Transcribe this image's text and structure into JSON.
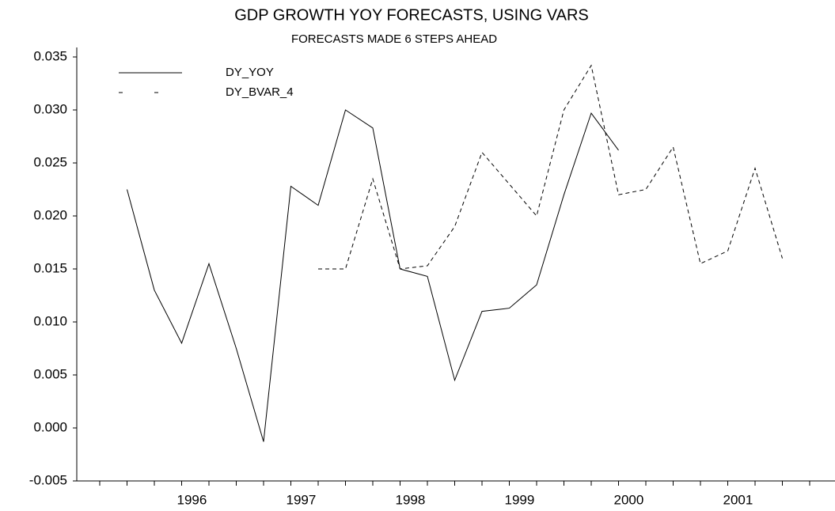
{
  "chart_data": {
    "type": "line",
    "title": "GDP GROWTH YOY FORECASTS, USING VARS",
    "subtitle": "FORECASTS MADE 6 STEPS AHEAD",
    "categories": [
      null,
      null,
      null,
      "1996",
      null,
      null,
      null,
      "1997",
      null,
      null,
      null,
      "1998",
      null,
      null,
      null,
      "1999",
      null,
      null,
      null,
      "2000",
      null,
      null,
      null,
      "2001",
      null,
      null,
      null
    ],
    "series": [
      {
        "name": "DY_YOY",
        "color": "#000000",
        "dash": false,
        "values": [
          null,
          0.0225,
          0.013,
          0.008,
          0.0155,
          0.0075,
          -0.0013,
          0.0228,
          0.021,
          0.03,
          0.0283,
          0.015,
          0.0143,
          0.0045,
          0.011,
          0.0113,
          0.0135,
          0.022,
          0.0297,
          0.0262,
          null,
          null,
          null,
          null,
          null,
          null,
          null
        ]
      },
      {
        "name": "DY_BVAR_4",
        "color": "#000000",
        "dash": true,
        "values": [
          null,
          null,
          null,
          null,
          null,
          null,
          null,
          null,
          0.015,
          0.015,
          0.0235,
          0.015,
          0.0153,
          0.019,
          0.026,
          0.023,
          0.02,
          0.03,
          0.0342,
          0.022,
          0.0225,
          0.0265,
          0.0155,
          0.0167,
          0.0245,
          0.016,
          null
        ]
      }
    ],
    "ylim": [
      -0.005,
      0.035
    ],
    "yticks": [
      {
        "value": -0.005,
        "label": "-0.005"
      },
      {
        "value": 0,
        "label": "0.000"
      },
      0.005,
      {
        "value": 0.01,
        "label": "0.010"
      },
      0.015,
      {
        "value": 0.02,
        "label": "0.020"
      },
      0.025,
      {
        "value": 0.03,
        "label": "0.030"
      },
      0.035
    ],
    "grid": false,
    "legend": "top-left"
  }
}
